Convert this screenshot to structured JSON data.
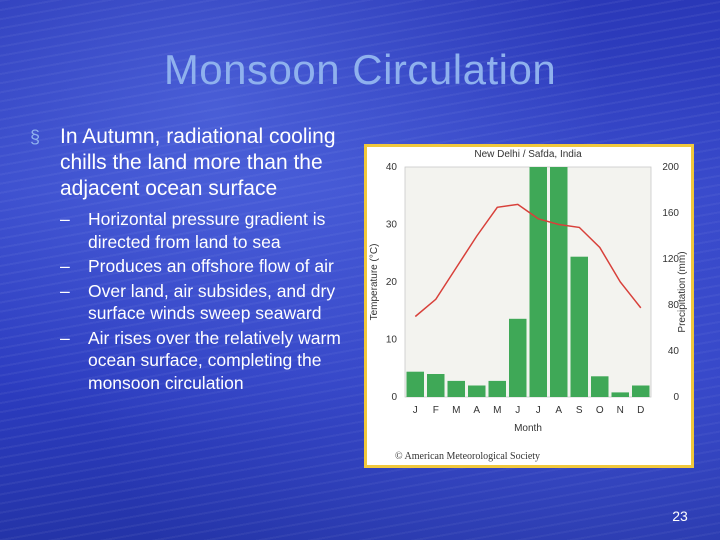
{
  "slide": {
    "title": "Monsoon Circulation",
    "bullet": "In Autumn, radiational cooling chills the land more than the adjacent ocean surface",
    "bullet_marker": "§",
    "sub_bullets": [
      "Horizontal pressure gradient is directed from land to sea",
      "Produces an offshore flow of air",
      "Over land, air subsides, and dry surface winds sweep seaward",
      "Air rises over the relatively warm ocean surface, completing the monsoon circulation"
    ],
    "page_number": "23"
  },
  "chart_data": {
    "type": "bar+line",
    "title": "New Delhi / Safda, India",
    "xlabel": "Month",
    "ylabel_left": "Temperature (°C)",
    "ylabel_right": "Precipitation (mm)",
    "categories": [
      "J",
      "F",
      "M",
      "A",
      "M",
      "J",
      "J",
      "A",
      "S",
      "O",
      "N",
      "D"
    ],
    "temperature_ylim": [
      0,
      40
    ],
    "temperature_ticks": [
      0,
      10,
      20,
      30,
      40
    ],
    "precip_ylim": [
      0,
      200
    ],
    "precip_ticks": [
      0,
      40,
      80,
      120,
      160,
      200
    ],
    "temperature": [
      14,
      17,
      22.5,
      28,
      33,
      33.5,
      31,
      30,
      29.5,
      26,
      20,
      15.5
    ],
    "precipitation": [
      22,
      20,
      14,
      10,
      14,
      68,
      200,
      200,
      122,
      18,
      4,
      10
    ],
    "credit": "© American Meteorological Society",
    "colors": {
      "bars": "#3fa857",
      "line": "#d8403a",
      "frame": "#f1c83c"
    }
  }
}
